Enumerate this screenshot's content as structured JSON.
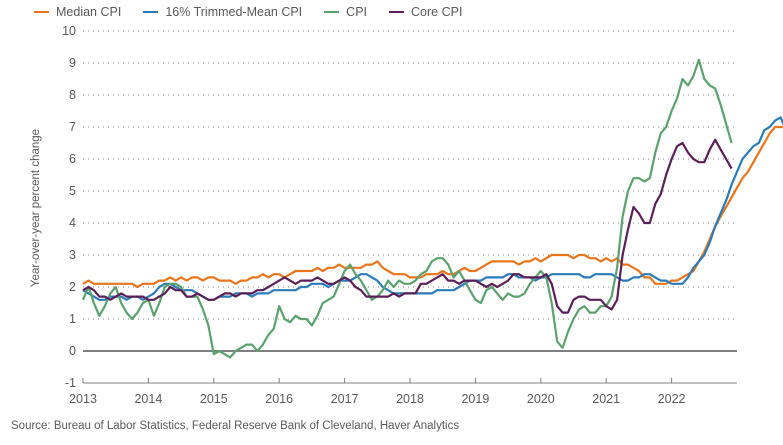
{
  "chart_data": {
    "type": "line",
    "title": "",
    "xlabel": "",
    "ylabel": "Year-over-year percent change",
    "ylim": [
      -1,
      10
    ],
    "yticks": [
      "10",
      "9",
      "8",
      "7",
      "6",
      "5",
      "4",
      "3",
      "2",
      "1",
      "0",
      "-1"
    ],
    "xlim": [
      "2013-01",
      "2022-12"
    ],
    "xticks": [
      "2013",
      "2014",
      "2015",
      "2016",
      "2017",
      "2018",
      "2019",
      "2020",
      "2021",
      "2022"
    ],
    "grid": "horizontal dotted",
    "legend_position": "top-left",
    "frequency": "monthly",
    "start": "2013-01",
    "series": [
      {
        "name": "Median CPI",
        "color": "#e8751a",
        "values": [
          2.1,
          2.2,
          2.1,
          2.1,
          2.1,
          2.1,
          2.1,
          2.1,
          2.1,
          2.1,
          2.0,
          2.1,
          2.1,
          2.1,
          2.2,
          2.2,
          2.3,
          2.2,
          2.3,
          2.2,
          2.3,
          2.3,
          2.2,
          2.3,
          2.3,
          2.2,
          2.2,
          2.2,
          2.1,
          2.2,
          2.2,
          2.3,
          2.3,
          2.4,
          2.3,
          2.4,
          2.4,
          2.3,
          2.4,
          2.5,
          2.5,
          2.5,
          2.5,
          2.6,
          2.5,
          2.6,
          2.6,
          2.7,
          2.6,
          2.6,
          2.6,
          2.6,
          2.7,
          2.7,
          2.8,
          2.6,
          2.5,
          2.4,
          2.4,
          2.4,
          2.3,
          2.3,
          2.3,
          2.4,
          2.4,
          2.4,
          2.5,
          2.4,
          2.4,
          2.5,
          2.6,
          2.5,
          2.5,
          2.6,
          2.7,
          2.8,
          2.8,
          2.8,
          2.8,
          2.8,
          2.7,
          2.8,
          2.8,
          2.9,
          2.8,
          2.9,
          3.0,
          3.0,
          3.0,
          3.0,
          2.9,
          3.0,
          3.0,
          2.9,
          2.9,
          2.8,
          2.9,
          2.8,
          2.9,
          2.7,
          2.7,
          2.6,
          2.5,
          2.3,
          2.3,
          2.1,
          2.1,
          2.1,
          2.2,
          2.2,
          2.3,
          2.4,
          2.5,
          2.8,
          3.1,
          3.5,
          3.9,
          4.2,
          4.5,
          4.8,
          5.1,
          5.4,
          5.6,
          5.9,
          6.2,
          6.5,
          6.8,
          7.0,
          7.0,
          7.0,
          7.0,
          6.9
        ]
      },
      {
        "name": "16% Trimmed-Mean CPI",
        "color": "#2b7bb9",
        "values": [
          1.9,
          1.8,
          1.7,
          1.6,
          1.6,
          1.7,
          1.7,
          1.7,
          1.6,
          1.7,
          1.7,
          1.6,
          1.7,
          1.8,
          2.0,
          2.1,
          2.1,
          2.0,
          1.9,
          1.9,
          1.9,
          1.8,
          1.7,
          1.6,
          1.6,
          1.7,
          1.7,
          1.7,
          1.8,
          1.8,
          1.8,
          1.7,
          1.8,
          1.8,
          1.8,
          1.9,
          1.9,
          1.9,
          1.9,
          1.9,
          2.0,
          2.0,
          2.1,
          2.1,
          2.1,
          2.0,
          2.1,
          2.2,
          2.2,
          2.2,
          2.3,
          2.4,
          2.4,
          2.3,
          2.2,
          2.0,
          1.9,
          1.8,
          1.8,
          1.8,
          1.8,
          1.8,
          1.8,
          1.8,
          1.8,
          1.9,
          1.9,
          1.9,
          1.9,
          2.0,
          2.1,
          2.2,
          2.2,
          2.2,
          2.3,
          2.3,
          2.3,
          2.3,
          2.4,
          2.4,
          2.3,
          2.3,
          2.3,
          2.2,
          2.3,
          2.3,
          2.4,
          2.4,
          2.4,
          2.4,
          2.4,
          2.4,
          2.3,
          2.3,
          2.4,
          2.4,
          2.4,
          2.4,
          2.3,
          2.2,
          2.2,
          2.3,
          2.3,
          2.4,
          2.4,
          2.3,
          2.2,
          2.2,
          2.1,
          2.1,
          2.1,
          2.3,
          2.6,
          2.8,
          3.0,
          3.4,
          3.9,
          4.3,
          4.7,
          5.2,
          5.6,
          6.0,
          6.2,
          6.4,
          6.5,
          6.9,
          7.0,
          7.2,
          7.3,
          6.9,
          6.6,
          6.5
        ]
      },
      {
        "name": "CPI",
        "color": "#5ba16e",
        "values": [
          1.6,
          2.0,
          1.5,
          1.1,
          1.4,
          1.8,
          2.0,
          1.5,
          1.2,
          1.0,
          1.2,
          1.5,
          1.6,
          1.1,
          1.5,
          2.0,
          2.1,
          2.1,
          2.0,
          1.7,
          1.7,
          1.7,
          1.3,
          0.8,
          -0.1,
          0.0,
          -0.1,
          -0.2,
          0.0,
          0.1,
          0.2,
          0.2,
          0.0,
          0.2,
          0.5,
          0.7,
          1.4,
          1.0,
          0.9,
          1.1,
          1.0,
          1.0,
          0.8,
          1.1,
          1.5,
          1.6,
          1.7,
          2.1,
          2.5,
          2.7,
          2.4,
          2.2,
          1.9,
          1.6,
          1.7,
          1.9,
          2.2,
          2.0,
          2.2,
          2.1,
          2.1,
          2.2,
          2.4,
          2.5,
          2.8,
          2.9,
          2.9,
          2.7,
          2.3,
          2.5,
          2.2,
          1.9,
          1.6,
          1.5,
          1.9,
          2.0,
          1.8,
          1.6,
          1.8,
          1.7,
          1.7,
          1.8,
          2.1,
          2.3,
          2.5,
          2.3,
          1.5,
          0.3,
          0.1,
          0.6,
          1.0,
          1.3,
          1.4,
          1.2,
          1.2,
          1.4,
          1.4,
          1.7,
          2.6,
          4.2,
          5.0,
          5.4,
          5.4,
          5.3,
          5.4,
          6.2,
          6.8,
          7.0,
          7.5,
          7.9,
          8.5,
          8.3,
          8.6,
          9.1,
          8.5,
          8.3,
          8.2,
          7.7,
          7.1,
          6.5
        ]
      },
      {
        "name": "Core CPI",
        "color": "#5b1f58",
        "values": [
          1.9,
          2.0,
          1.9,
          1.7,
          1.7,
          1.6,
          1.7,
          1.8,
          1.7,
          1.7,
          1.7,
          1.7,
          1.6,
          1.6,
          1.7,
          1.8,
          2.0,
          1.9,
          1.9,
          1.7,
          1.7,
          1.8,
          1.7,
          1.6,
          1.6,
          1.7,
          1.8,
          1.8,
          1.7,
          1.8,
          1.8,
          1.8,
          1.9,
          1.9,
          2.0,
          2.1,
          2.2,
          2.3,
          2.2,
          2.1,
          2.2,
          2.2,
          2.2,
          2.3,
          2.2,
          2.1,
          2.1,
          2.2,
          2.3,
          2.2,
          2.0,
          1.9,
          1.7,
          1.7,
          1.7,
          1.7,
          1.7,
          1.8,
          1.7,
          1.8,
          1.8,
          1.8,
          2.1,
          2.1,
          2.2,
          2.3,
          2.4,
          2.2,
          2.2,
          2.1,
          2.2,
          2.2,
          2.2,
          2.1,
          2.0,
          2.1,
          2.0,
          2.1,
          2.2,
          2.4,
          2.4,
          2.3,
          2.3,
          2.3,
          2.3,
          2.4,
          2.1,
          1.4,
          1.2,
          1.2,
          1.6,
          1.7,
          1.7,
          1.6,
          1.6,
          1.6,
          1.4,
          1.3,
          1.6,
          3.0,
          3.8,
          4.5,
          4.3,
          4.0,
          4.0,
          4.6,
          4.9,
          5.5,
          6.0,
          6.4,
          6.5,
          6.2,
          6.0,
          5.9,
          5.9,
          6.3,
          6.6,
          6.3,
          6.0,
          5.7
        ]
      }
    ],
    "reference_line": {
      "y": 0,
      "color": "#7f7f7f"
    }
  },
  "footer": {
    "source": "Source: Bureau of Labor Statistics, Federal Reserve Bank of Cleveland, Haver Analytics"
  }
}
